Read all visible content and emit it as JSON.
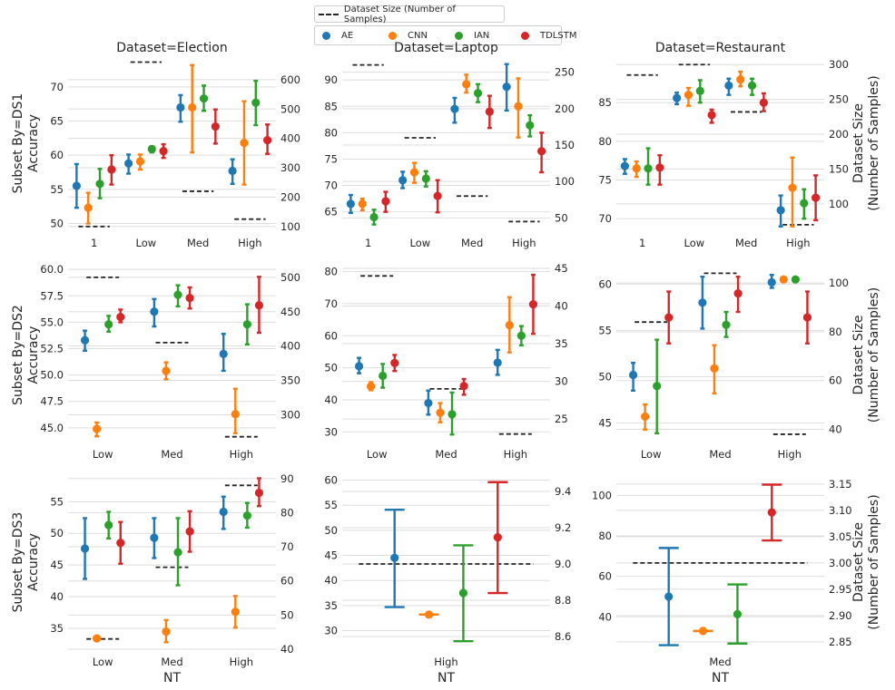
{
  "legend": {
    "size_label": "Dataset Size (Number of Samples)",
    "series": [
      {
        "name": "AE",
        "color": "#1f77b4"
      },
      {
        "name": "CNN",
        "color": "#ff7f0e"
      },
      {
        "name": "IAN",
        "color": "#2ca02c"
      },
      {
        "name": "TDLSTM",
        "color": "#d62728"
      }
    ]
  },
  "chart_data": [
    {
      "type": "pointplot",
      "title": "Dataset=Election",
      "ylabel": "Subset By=DS1\nAccuracy",
      "y2label": "",
      "categories": [
        "1",
        "Low",
        "Med",
        "High"
      ],
      "xlabel": "",
      "ylim": [
        49,
        74.5
      ],
      "yticks": [
        50,
        55,
        60,
        65,
        70
      ],
      "y2lim": [
        87,
        680
      ],
      "y2ticks": [
        100,
        200,
        300,
        400,
        500,
        600
      ],
      "series": [
        {
          "name": "AE",
          "values": [
            55.5,
            58.8,
            67.0,
            57.7
          ],
          "err_low": [
            52.3,
            57.3,
            64.9,
            55.8
          ],
          "err_high": [
            58.7,
            60.1,
            68.8,
            59.4
          ]
        },
        {
          "name": "CNN",
          "values": [
            52.3,
            59.1,
            67.0,
            61.8
          ],
          "err_low": [
            50.0,
            57.9,
            60.4,
            55.7
          ],
          "err_high": [
            54.5,
            60.1,
            73.2,
            67.9
          ]
        },
        {
          "name": "IAN",
          "values": [
            55.8,
            60.9,
            68.3,
            67.7
          ],
          "err_low": [
            53.7,
            60.4,
            66.5,
            64.4
          ],
          "err_high": [
            58.0,
            61.3,
            70.2,
            70.9
          ]
        },
        {
          "name": "TDLSTM",
          "values": [
            57.9,
            60.6,
            64.2,
            62.2
          ],
          "err_low": [
            55.7,
            59.6,
            61.7,
            60.2
          ],
          "err_high": [
            60.0,
            61.6,
            66.7,
            64.5
          ]
        }
      ],
      "dataset_size": [
        100,
        660,
        220,
        125
      ]
    },
    {
      "type": "pointplot",
      "title": "Dataset=Laptop",
      "ylabel": "",
      "y2label": "",
      "categories": [
        "1",
        "Low",
        "Med",
        "High"
      ],
      "xlabel": "",
      "ylim": [
        61.5,
        94.5
      ],
      "yticks": [
        65,
        70,
        75,
        80,
        85,
        90
      ],
      "y2lim": [
        33,
        272
      ],
      "y2ticks": [
        50,
        100,
        150,
        200,
        250
      ],
      "series": [
        {
          "name": "AE",
          "values": [
            66.5,
            71.0,
            84.5,
            88.7
          ],
          "err_low": [
            64.8,
            69.5,
            81.9,
            84.2
          ],
          "err_high": [
            68.2,
            72.6,
            86.6,
            93.0
          ]
        },
        {
          "name": "CNN",
          "values": [
            66.5,
            72.5,
            89.2,
            85.0
          ],
          "err_low": [
            65.3,
            70.5,
            87.6,
            79.1
          ],
          "err_high": [
            67.5,
            74.3,
            91.0,
            90.3
          ]
        },
        {
          "name": "IAN",
          "values": [
            64.0,
            71.3,
            87.5,
            81.4
          ],
          "err_low": [
            62.6,
            69.8,
            85.8,
            79.3
          ],
          "err_high": [
            65.4,
            72.7,
            89.2,
            83.3
          ]
        },
        {
          "name": "TDLSTM",
          "values": [
            67.0,
            68.0,
            84.0,
            76.5
          ],
          "err_low": [
            65.0,
            64.9,
            80.9,
            72.5
          ],
          "err_high": [
            68.8,
            71.0,
            87.0,
            80.0
          ]
        }
      ],
      "dataset_size": [
        260,
        160,
        80,
        45
      ]
    },
    {
      "type": "pointplot",
      "title": "Dataset=Restaurant",
      "ylabel": "",
      "y2label": "Dataset Size\n(Number of Samples)",
      "categories": [
        "1",
        "Low",
        "Med",
        "High"
      ],
      "xlabel": "",
      "ylim": [
        68.5,
        91
      ],
      "yticks": [
        70,
        75,
        80,
        85
      ],
      "y2lim": [
        62,
        312
      ],
      "y2ticks": [
        100,
        150,
        200,
        250,
        300
      ],
      "series": [
        {
          "name": "AE",
          "values": [
            76.8,
            85.6,
            87.2,
            71.1
          ],
          "err_low": [
            75.8,
            84.8,
            86.0,
            69.0
          ],
          "err_high": [
            77.7,
            86.3,
            88.1,
            73.0
          ]
        },
        {
          "name": "CNN",
          "values": [
            76.5,
            86.0,
            88.0,
            74.0
          ],
          "err_low": [
            75.4,
            84.6,
            87.1,
            69.0
          ],
          "err_high": [
            77.4,
            86.9,
            89.0,
            77.9
          ]
        },
        {
          "name": "IAN",
          "values": [
            76.5,
            86.5,
            87.2,
            72.0
          ],
          "err_low": [
            74.4,
            85.0,
            86.0,
            70.0
          ],
          "err_high": [
            79.1,
            87.9,
            88.1,
            73.8
          ]
        },
        {
          "name": "TDLSTM",
          "values": [
            76.6,
            83.4,
            85.0,
            72.7
          ],
          "err_low": [
            74.4,
            82.4,
            83.9,
            69.8
          ],
          "err_high": [
            78.2,
            84.1,
            86.2,
            75.6
          ]
        }
      ],
      "dataset_size": [
        285,
        300,
        232,
        70
      ]
    },
    {
      "type": "pointplot",
      "title": "",
      "ylabel": "Subset By=DS2\nAccuracy",
      "y2label": "",
      "categories": [
        "Low",
        "Med",
        "High"
      ],
      "xlabel": "",
      "ylim": [
        43.7,
        60.1
      ],
      "yticks": [
        45.0,
        47.5,
        50.0,
        52.5,
        55.0,
        57.5,
        60.0
      ],
      "y2lim": [
        261,
        513
      ],
      "y2ticks": [
        300,
        350,
        400,
        450,
        500
      ],
      "series": [
        {
          "name": "AE",
          "values": [
            53.3,
            56.0,
            52.0
          ],
          "err_low": [
            52.3,
            54.6,
            50.4
          ],
          "err_high": [
            54.2,
            57.2,
            53.9
          ]
        },
        {
          "name": "CNN",
          "values": [
            44.9,
            50.4,
            46.3
          ],
          "err_low": [
            44.2,
            49.6,
            44.5
          ],
          "err_high": [
            45.5,
            51.2,
            48.7
          ]
        },
        {
          "name": "IAN",
          "values": [
            54.8,
            57.6,
            54.8
          ],
          "err_low": [
            54.1,
            56.5,
            52.9
          ],
          "err_high": [
            55.6,
            58.5,
            56.7
          ]
        },
        {
          "name": "TDLSTM",
          "values": [
            55.5,
            57.3,
            56.6
          ],
          "err_low": [
            55.0,
            56.3,
            54.0
          ],
          "err_high": [
            56.2,
            58.3,
            59.3
          ]
        }
      ],
      "dataset_size": [
        500,
        405,
        268
      ]
    },
    {
      "type": "pointplot",
      "title": "",
      "ylabel": "",
      "y2label": "",
      "categories": [
        "Low",
        "Med",
        "High"
      ],
      "xlabel": "",
      "ylim": [
        27,
        81
      ],
      "yticks": [
        30,
        40,
        50,
        60,
        70,
        80
      ],
      "y2lim": [
        22,
        45
      ],
      "y2ticks": [
        25,
        30,
        35,
        40,
        45
      ],
      "series": [
        {
          "name": "AE",
          "values": [
            50.5,
            39.0,
            51.6
          ],
          "err_low": [
            48.3,
            35.4,
            47.8
          ],
          "err_high": [
            53.1,
            42.9,
            55.6
          ]
        },
        {
          "name": "CNN",
          "values": [
            44.2,
            36.0,
            63.3
          ],
          "err_low": [
            43.0,
            33.0,
            54.8
          ],
          "err_high": [
            45.5,
            39.0,
            72.0
          ]
        },
        {
          "name": "IAN",
          "values": [
            47.5,
            35.5,
            60.0
          ],
          "err_low": [
            43.8,
            29.2,
            57.0
          ],
          "err_high": [
            51.2,
            42.3,
            63.0
          ]
        },
        {
          "name": "TDLSTM",
          "values": [
            51.5,
            44.3,
            69.8
          ],
          "err_low": [
            49.0,
            41.6,
            60.6
          ],
          "err_high": [
            54.0,
            46.5,
            79.0
          ]
        }
      ],
      "dataset_size": [
        44,
        29,
        23
      ]
    },
    {
      "type": "pointplot",
      "title": "",
      "ylabel": "",
      "y2label": "Dataset Size\n(Number of Samples)",
      "categories": [
        "Low",
        "Med",
        "High"
      ],
      "xlabel": "",
      "ylim": [
        43,
        61.7
      ],
      "yticks": [
        45,
        50,
        55,
        60
      ],
      "y2lim": [
        35,
        106
      ],
      "y2ticks": [
        40,
        60,
        80,
        100
      ],
      "series": [
        {
          "name": "AE",
          "values": [
            50.2,
            58.0,
            60.2
          ],
          "err_low": [
            48.5,
            55.2,
            59.6
          ],
          "err_high": [
            51.5,
            60.8,
            61.0
          ]
        },
        {
          "name": "CNN",
          "values": [
            45.7,
            50.9,
            60.5
          ],
          "err_low": [
            44.3,
            48.2,
            60.5
          ],
          "err_high": [
            47.0,
            53.4,
            60.5
          ]
        },
        {
          "name": "IAN",
          "values": [
            49.0,
            55.6,
            60.5
          ],
          "err_low": [
            43.9,
            54.3,
            60.5
          ],
          "err_high": [
            54.0,
            57.0,
            60.5
          ]
        },
        {
          "name": "TDLSTM",
          "values": [
            56.4,
            59.0,
            56.4
          ],
          "err_low": [
            53.6,
            57.0,
            53.6
          ],
          "err_high": [
            59.2,
            60.8,
            59.2
          ]
        }
      ],
      "dataset_size": [
        84,
        104,
        38
      ]
    },
    {
      "type": "pointplot",
      "title": "",
      "ylabel": "Subset By=DS3\nAccuracy",
      "y2label": "",
      "categories": [
        "Low",
        "Med",
        "High"
      ],
      "xlabel": "NT",
      "ylim": [
        31.7,
        59.2
      ],
      "yticks": [
        35,
        40,
        45,
        50,
        55
      ],
      "y2lim": [
        40,
        91
      ],
      "y2ticks": [
        40,
        50,
        60,
        70,
        80,
        90
      ],
      "series": [
        {
          "name": "AE",
          "values": [
            47.6,
            49.3,
            53.4
          ],
          "err_low": [
            42.8,
            46.1,
            50.7
          ],
          "err_high": [
            52.4,
            52.4,
            55.8
          ]
        },
        {
          "name": "CNN",
          "values": [
            33.4,
            34.5,
            37.6
          ],
          "err_low": [
            33.3,
            32.8,
            35.1
          ],
          "err_high": [
            33.6,
            36.3,
            40.1
          ]
        },
        {
          "name": "IAN",
          "values": [
            51.3,
            47.0,
            52.8
          ],
          "err_low": [
            49.2,
            41.8,
            50.9
          ],
          "err_high": [
            53.4,
            52.4,
            54.8
          ]
        },
        {
          "name": "TDLSTM",
          "values": [
            48.5,
            50.3,
            56.4
          ],
          "err_low": [
            45.2,
            47.1,
            54.3
          ],
          "err_high": [
            51.8,
            53.5,
            58.7
          ]
        }
      ],
      "dataset_size": [
        43,
        64,
        88
      ]
    },
    {
      "type": "pointplot",
      "title": "",
      "ylabel": "",
      "y2label": "",
      "categories": [
        "High"
      ],
      "xlabel": "NT",
      "ylim": [
        26.3,
        61
      ],
      "yticks": [
        30,
        35,
        40,
        45,
        50,
        55,
        60
      ],
      "y2lim": [
        8.53,
        9.49
      ],
      "y2ticks": [
        8.6,
        8.8,
        9.0,
        9.2,
        9.4
      ],
      "series": [
        {
          "name": "AE",
          "values": [
            44.5
          ],
          "err_low": [
            34.7
          ],
          "err_high": [
            54.1
          ]
        },
        {
          "name": "CNN",
          "values": [
            33.2
          ],
          "err_low": [
            33.2
          ],
          "err_high": [
            33.2
          ]
        },
        {
          "name": "IAN",
          "values": [
            37.5
          ],
          "err_low": [
            27.9
          ],
          "err_high": [
            47.0
          ]
        },
        {
          "name": "TDLSTM",
          "values": [
            48.6
          ],
          "err_low": [
            37.5
          ],
          "err_high": [
            59.6
          ]
        }
      ],
      "dataset_size": [
        9.0
      ]
    },
    {
      "type": "pointplot",
      "title": "",
      "ylabel": "",
      "y2label": "Dataset Size\n(Number of Samples)",
      "categories": [
        "Med"
      ],
      "xlabel": "NT",
      "ylim": [
        24,
        110
      ],
      "yticks": [
        40,
        60,
        80,
        100
      ],
      "y2lim": [
        2.836,
        3.167
      ],
      "y2ticks": [
        2.85,
        2.9,
        2.95,
        3.0,
        3.05,
        3.1,
        3.15
      ],
      "series": [
        {
          "name": "AE",
          "values": [
            50.0
          ],
          "err_low": [
            26.0
          ],
          "err_high": [
            74.0
          ]
        },
        {
          "name": "CNN",
          "values": [
            33.0
          ],
          "err_low": [
            33.0
          ],
          "err_high": [
            33.0
          ]
        },
        {
          "name": "IAN",
          "values": [
            41.3
          ],
          "err_low": [
            26.8
          ],
          "err_high": [
            56.0
          ]
        },
        {
          "name": "TDLSTM",
          "values": [
            91.6
          ],
          "err_low": [
            77.7
          ],
          "err_high": [
            105.3
          ]
        }
      ],
      "dataset_size": [
        3.0
      ]
    }
  ]
}
